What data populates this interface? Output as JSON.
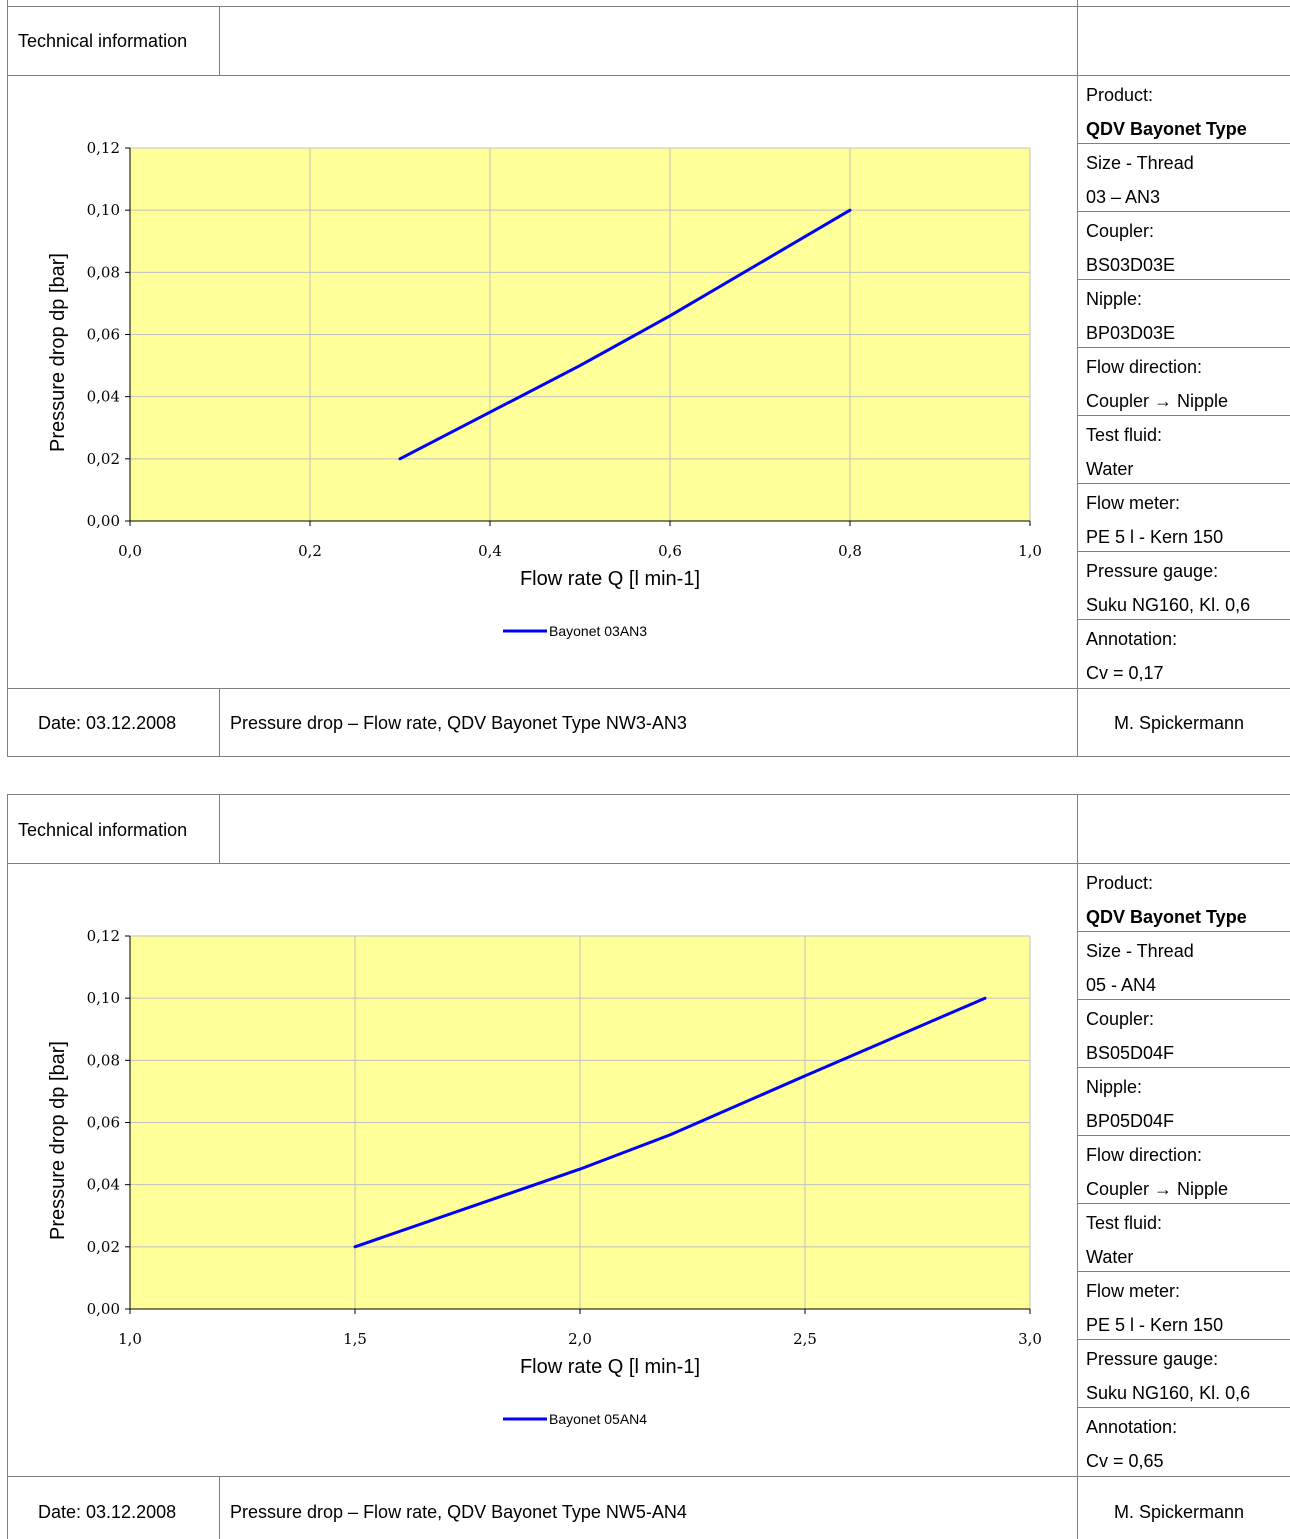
{
  "sheets": [
    {
      "header_label": "Technical information",
      "info": [
        {
          "label": "Product:",
          "value": "QDV Bayonet Type",
          "value_bold": true
        },
        {
          "label": "Size - Thread",
          "value": "03 – AN3"
        },
        {
          "label": "Coupler:",
          "value": "BS03D03E"
        },
        {
          "label": "Nipple:",
          "value": "BP03D03E"
        },
        {
          "label": "Flow direction:",
          "value": "Coupler → Nipple"
        },
        {
          "label": "Test fluid:",
          "value": "Water"
        },
        {
          "label": "Flow meter:",
          "value": "PE 5 l - Kern 150"
        },
        {
          "label": "Pressure gauge:",
          "value": "Suku NG160, Kl. 0,6"
        },
        {
          "label": "Annotation:",
          "value": "Cv = 0,17"
        }
      ],
      "footer": {
        "date": "Date: 03.12.2008",
        "description": "Pressure drop – Flow rate, QDV Bayonet Type NW3-AN3",
        "author": "M. Spickermann"
      }
    },
    {
      "header_label": "Technical information",
      "info": [
        {
          "label": "Product:",
          "value": "QDV Bayonet Type",
          "value_bold": true
        },
        {
          "label": "Size - Thread",
          "value": "05 - AN4"
        },
        {
          "label": "Coupler:",
          "value": "BS05D04F"
        },
        {
          "label": "Nipple:",
          "value": "BP05D04F"
        },
        {
          "label": "Flow direction:",
          "value": "Coupler → Nipple"
        },
        {
          "label": "Test fluid:",
          "value": "Water"
        },
        {
          "label": "Flow meter:",
          "value": "PE 5 l - Kern 150"
        },
        {
          "label": "Pressure gauge:",
          "value": "Suku NG160, Kl. 0,6"
        },
        {
          "label": "Annotation:",
          "value": "Cv = 0,65"
        }
      ],
      "footer": {
        "date": "Date: 03.12.2008",
        "description": "Pressure drop – Flow rate, QDV Bayonet Type NW5-AN4",
        "author": "M. Spickermann"
      }
    }
  ],
  "colors": {
    "plot_bg": "#FFFF99",
    "series_line": "#0000FF",
    "grid": "#C0C0C0",
    "border": "#808080"
  },
  "chart_data": [
    {
      "type": "line",
      "xlabel": "Flow rate Q [l min-1]",
      "ylabel": "Pressure drop dp [bar]",
      "xlim": [
        0.0,
        1.0
      ],
      "ylim": [
        0.0,
        0.12
      ],
      "x_ticks": [
        "0,0",
        "0,2",
        "0,4",
        "0,6",
        "0,8",
        "1,0"
      ],
      "y_ticks": [
        "0,00",
        "0,02",
        "0,04",
        "0,06",
        "0,08",
        "0,10",
        "0,12"
      ],
      "grid": true,
      "legend_position": "bottom-center",
      "series": [
        {
          "name": "Bayonet 03AN3",
          "x": [
            0.3,
            0.4,
            0.5,
            0.6,
            0.7,
            0.8
          ],
          "y": [
            0.02,
            0.035,
            0.05,
            0.066,
            0.083,
            0.1
          ]
        }
      ]
    },
    {
      "type": "line",
      "xlabel": "Flow rate Q [l min-1]",
      "ylabel": "Pressure drop dp [bar]",
      "xlim": [
        1.0,
        3.0
      ],
      "ylim": [
        0.0,
        0.12
      ],
      "x_ticks": [
        "1,0",
        "1,5",
        "2,0",
        "2,5",
        "3,0"
      ],
      "y_ticks": [
        "0,00",
        "0,02",
        "0,04",
        "0,06",
        "0,08",
        "0,10",
        "0,12"
      ],
      "grid": true,
      "legend_position": "bottom-center",
      "series": [
        {
          "name": "Bayonet 05AN4",
          "x": [
            1.5,
            1.8,
            2.0,
            2.2,
            2.5,
            2.9
          ],
          "y": [
            0.02,
            0.035,
            0.045,
            0.056,
            0.075,
            0.1
          ]
        }
      ]
    }
  ]
}
